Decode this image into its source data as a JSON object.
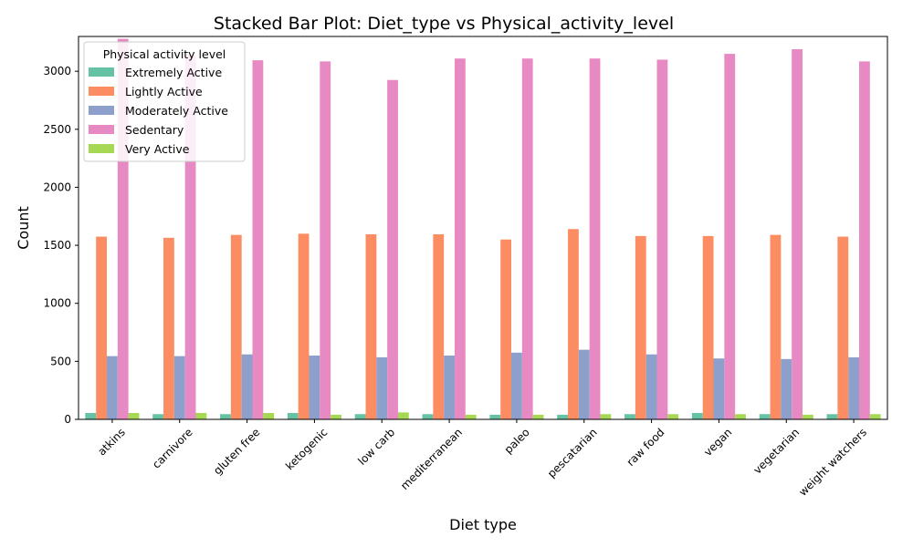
{
  "chart_data": {
    "type": "bar",
    "title": "Stacked Bar Plot: Diet_type vs Physical_activity_level",
    "xlabel": "Diet type",
    "ylabel": "Count",
    "ylim": [
      0,
      3300
    ],
    "yticks": [
      0,
      500,
      1000,
      1500,
      2000,
      2500,
      3000
    ],
    "grid": false,
    "legend_title": "Physical activity level",
    "legend_position": "top-left",
    "categories": [
      "atkins",
      "carnivore",
      "gluten free",
      "ketogenic",
      "low carb",
      "mediterranean",
      "paleo",
      "pescatarian",
      "raw food",
      "vegan",
      "vegetarian",
      "weight watchers"
    ],
    "series": [
      {
        "name": "Extremely Active",
        "color": "#66c2a5",
        "values": [
          55,
          45,
          45,
          55,
          45,
          45,
          40,
          40,
          45,
          55,
          45,
          45
        ]
      },
      {
        "name": "Lightly Active",
        "color": "#fc8d62",
        "values": [
          1575,
          1565,
          1590,
          1600,
          1595,
          1595,
          1550,
          1640,
          1580,
          1580,
          1590,
          1575
        ]
      },
      {
        "name": "Moderately Active",
        "color": "#8da0cb",
        "values": [
          545,
          545,
          560,
          550,
          535,
          550,
          575,
          600,
          560,
          525,
          520,
          535
        ]
      },
      {
        "name": "Sedentary",
        "color": "#e78ac3",
        "values": [
          3280,
          3140,
          3095,
          3085,
          2925,
          3110,
          3110,
          3110,
          3100,
          3150,
          3190,
          3085
        ]
      },
      {
        "name": "Very Active",
        "color": "#a6d854",
        "values": [
          55,
          55,
          55,
          40,
          60,
          40,
          40,
          45,
          45,
          45,
          40,
          45
        ]
      }
    ]
  }
}
